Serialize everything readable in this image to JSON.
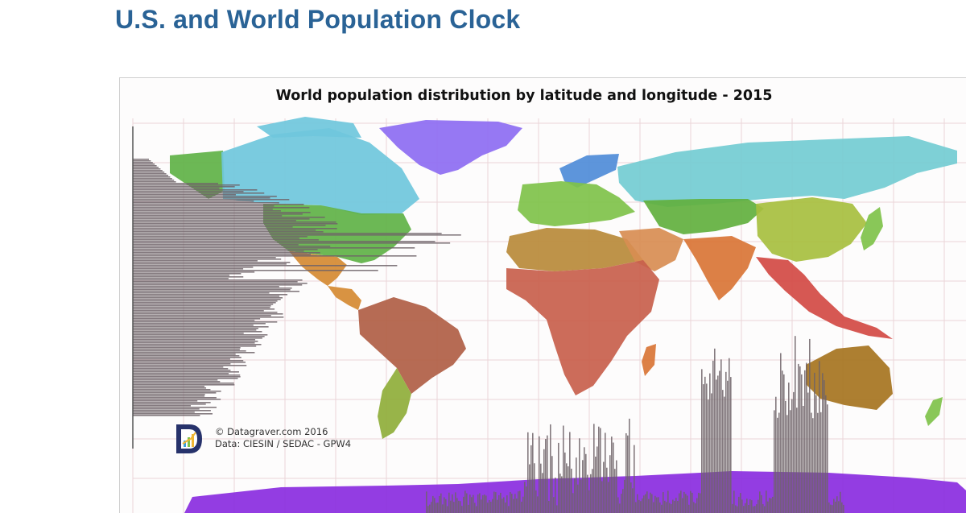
{
  "page": {
    "title": "U.S. and World Population Clock"
  },
  "map": {
    "title": "World population distribution by latitude and longitude - 2015",
    "credit_line1": "© Datagraver.com 2016",
    "credit_line2": "Data: CIESIN / SEDAC - GPW4",
    "logo_letter": "D",
    "colors": {
      "grid": "#ead5d8",
      "histogram": "#6f6369",
      "canada": "#6fc7dc",
      "usa": "#5fb246",
      "greenland": "#8d6cf2",
      "russia": "#73ccd2",
      "scandinavia": "#4f8cd8",
      "europe": "#7fc24a",
      "central_asia": "#62b03e",
      "mexico": "#d58a32",
      "south_america": "#b05e45",
      "south_cone": "#8fae3a",
      "africa": "#c85f4c",
      "north_africa": "#b88a3a",
      "middle_east": "#d88d52",
      "india": "#d97536",
      "china": "#a7bf3f",
      "se_asia": "#d24a44",
      "australia": "#a6741f",
      "antarctica": "#8a2ce0"
    }
  }
}
